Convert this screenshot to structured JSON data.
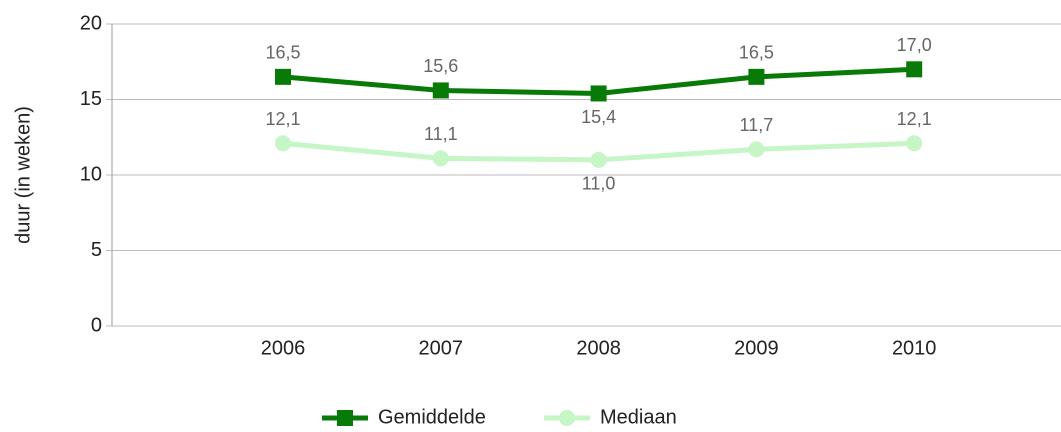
{
  "chart_data": {
    "type": "line",
    "y_label": "duur (in weken)",
    "categories": [
      "2006",
      "2007",
      "2008",
      "2009",
      "2010"
    ],
    "series": [
      {
        "name": "Gemiddelde",
        "color": "#077a07",
        "marker": "square",
        "values": [
          16.5,
          15.6,
          15.4,
          16.5,
          17.0
        ],
        "value_labels": [
          "16,5",
          "15,6",
          "15,4",
          "16,5",
          "17,0"
        ]
      },
      {
        "name": "Mediaan",
        "color": "#c6f5c6",
        "marker": "circle",
        "values": [
          12.1,
          11.1,
          11.0,
          11.7,
          12.1
        ],
        "value_labels": [
          "12,1",
          "11,1",
          "11,0",
          "11,7",
          "12,1"
        ]
      }
    ],
    "ylim": [
      0,
      20
    ],
    "yticks": [
      0,
      5,
      10,
      15,
      20
    ],
    "grid": true,
    "legend": "bottom"
  }
}
